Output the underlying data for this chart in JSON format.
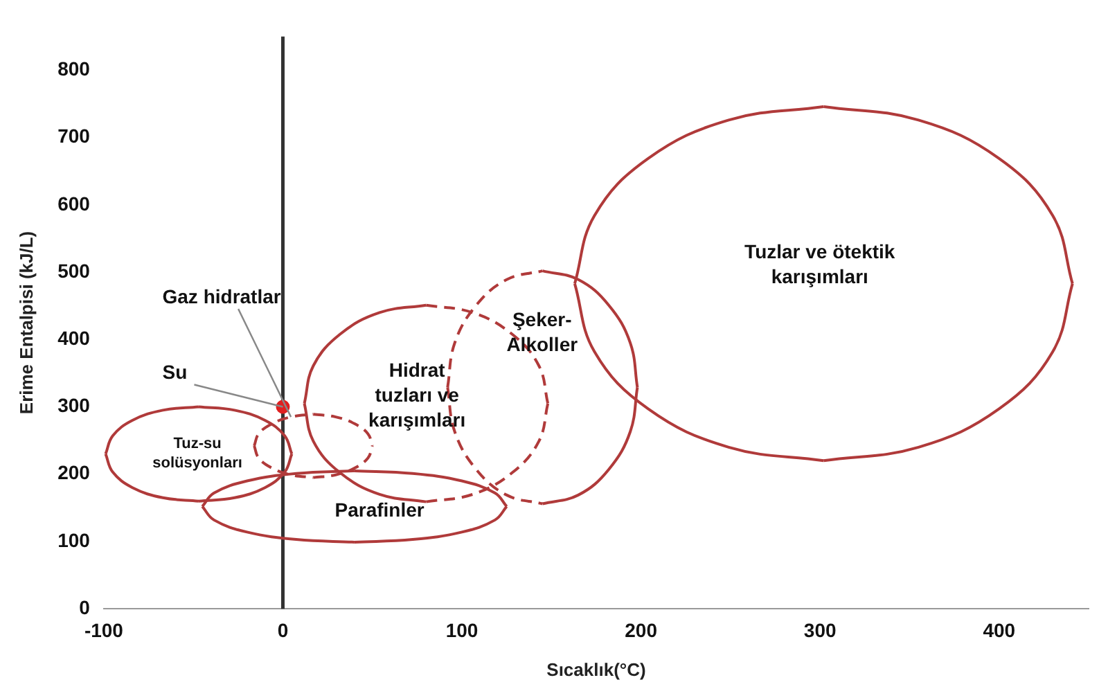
{
  "chart_data": {
    "type": "line",
    "xlabel": "Sıcaklık(°C)",
    "ylabel": "Erime Entalpisi (kJ/L)",
    "xlim": [
      -100,
      450
    ],
    "xticks": [
      -100,
      0,
      100,
      200,
      300,
      400
    ],
    "ylim": [
      0,
      850
    ],
    "yticks": [
      0,
      100,
      200,
      300,
      400,
      500,
      600,
      700,
      800
    ],
    "grid": false,
    "legend": false,
    "marker": "none",
    "series": [
      {
        "type": "line",
        "color": "#b03a3a",
        "line_style": "solid",
        "x": [
          163,
          174,
          204,
          249,
          302
        ],
        "values": [
          483,
          584,
          669,
          726,
          746
        ]
      },
      {
        "type": "line",
        "color": "#b03a3a",
        "line_style": "solid",
        "x": [
          302,
          355,
          400,
          430,
          441
        ],
        "values": [
          746,
          726,
          669,
          584,
          483
        ]
      },
      {
        "type": "line",
        "color": "#b03a3a",
        "line_style": "solid",
        "x": [
          163,
          174,
          204,
          249,
          302
        ],
        "values": [
          483,
          382,
          297,
          240,
          220
        ]
      },
      {
        "type": "line",
        "color": "#b03a3a",
        "line_style": "solid",
        "x": [
          302,
          355,
          400,
          430,
          441
        ],
        "values": [
          220,
          240,
          297,
          382,
          483
        ]
      },
      {
        "type": "line",
        "color": "#b03a3a",
        "line_style": "dashed",
        "x": [
          92,
          96,
          108,
          125,
          145
        ],
        "values": [
          329,
          395,
          451,
          489,
          502
        ]
      },
      {
        "type": "line",
        "color": "#b03a3a",
        "line_style": "dashed",
        "x": [
          92,
          96,
          108,
          125,
          145
        ],
        "values": [
          329,
          263,
          207,
          169,
          156
        ]
      },
      {
        "type": "line",
        "color": "#b03a3a",
        "line_style": "solid",
        "x": [
          145,
          165,
          182,
          194,
          198
        ],
        "values": [
          502,
          489,
          451,
          395,
          329
        ]
      },
      {
        "type": "line",
        "color": "#b03a3a",
        "line_style": "solid",
        "x": [
          145,
          165,
          182,
          194,
          198
        ],
        "values": [
          156,
          169,
          207,
          263,
          329
        ]
      },
      {
        "type": "line",
        "color": "#b03a3a",
        "line_style": "solid",
        "x": [
          12,
          17,
          32,
          54,
          80
        ],
        "values": [
          305,
          361,
          408,
          440,
          451
        ]
      },
      {
        "type": "line",
        "color": "#b03a3a",
        "line_style": "solid",
        "x": [
          12,
          17,
          32,
          54,
          80
        ],
        "values": [
          305,
          249,
          202,
          170,
          159
        ]
      },
      {
        "type": "line",
        "color": "#b03a3a",
        "line_style": "dashed",
        "x": [
          80,
          106,
          128,
          143,
          148
        ],
        "values": [
          451,
          440,
          408,
          361,
          305
        ]
      },
      {
        "type": "line",
        "color": "#b03a3a",
        "line_style": "dashed",
        "x": [
          80,
          106,
          128,
          143,
          148
        ],
        "values": [
          159,
          170,
          202,
          249,
          305
        ]
      },
      {
        "type": "line",
        "color": "#b03a3a",
        "line_style": "solid",
        "x": [
          -45,
          -38.5,
          -20,
          7.5,
          40
        ],
        "values": [
          152,
          172,
          190,
          201,
          205
        ]
      },
      {
        "type": "line",
        "color": "#b03a3a",
        "line_style": "solid",
        "x": [
          40,
          72.5,
          100,
          118.5,
          125
        ],
        "values": [
          205,
          201,
          190,
          172,
          152
        ]
      },
      {
        "type": "line",
        "color": "#b03a3a",
        "line_style": "solid",
        "x": [
          -45,
          -38.5,
          -20,
          7.5,
          40
        ],
        "values": [
          152,
          132,
          114,
          103,
          99
        ]
      },
      {
        "type": "line",
        "color": "#b03a3a",
        "line_style": "solid",
        "x": [
          40,
          72.5,
          100,
          118.5,
          125
        ],
        "values": [
          99,
          103,
          114,
          132,
          152
        ]
      },
      {
        "type": "line",
        "color": "#b03a3a",
        "line_style": "solid",
        "x": [
          -99,
          -95,
          -84,
          -67,
          -47
        ],
        "values": [
          230,
          257,
          280,
          295,
          300
        ]
      },
      {
        "type": "line",
        "color": "#b03a3a",
        "line_style": "solid",
        "x": [
          -47,
          -27,
          -10,
          1,
          5
        ],
        "values": [
          300,
          295,
          280,
          257,
          230
        ]
      },
      {
        "type": "line",
        "color": "#b03a3a",
        "line_style": "solid",
        "x": [
          -99,
          -95,
          -84,
          -67,
          -47
        ],
        "values": [
          230,
          203,
          180,
          165,
          160
        ]
      },
      {
        "type": "line",
        "color": "#b03a3a",
        "line_style": "solid",
        "x": [
          -47,
          -27,
          -10,
          1,
          5
        ],
        "values": [
          160,
          165,
          180,
          203,
          230
        ]
      },
      {
        "type": "line",
        "color": "#b03a3a",
        "line_style": "dashed",
        "x": [
          -16,
          -13.5,
          -6,
          4.5,
          17
        ],
        "values": [
          242,
          260,
          275,
          285,
          289
        ]
      },
      {
        "type": "line",
        "color": "#b03a3a",
        "line_style": "dashed",
        "x": [
          17,
          29.5,
          40,
          47.5,
          50
        ],
        "values": [
          289,
          285,
          275,
          260,
          242
        ]
      },
      {
        "type": "line",
        "color": "#b03a3a",
        "line_style": "dashed",
        "x": [
          -16,
          -13.5,
          -6,
          4.5,
          17
        ],
        "values": [
          242,
          224,
          209,
          199,
          195
        ]
      },
      {
        "type": "line",
        "color": "#b03a3a",
        "line_style": "dashed",
        "x": [
          17,
          29.5,
          40,
          47.5,
          50
        ],
        "values": [
          195,
          199,
          209,
          224,
          242
        ]
      },
      {
        "type": "scatter",
        "color": "#e02020",
        "marker": "circle",
        "x": [
          0
        ],
        "values": [
          300
        ]
      }
    ],
    "ref_lines": [
      {
        "axis": "x",
        "value": 0,
        "color": "#333333"
      }
    ],
    "annotations": [
      "Tuzlar ve ötektik\nkarışımları",
      "Şeker-\nAlkoller",
      "Hidrat\ntuzları ve\nkarışımları",
      "Parafinler",
      "Tuz-su\nsolüsyonları",
      {
        "text": "Su",
        "x": 0,
        "y": 300
      },
      {
        "text": "Gaz hidratlar",
        "x": 4.5,
        "y": 285
      }
    ]
  }
}
